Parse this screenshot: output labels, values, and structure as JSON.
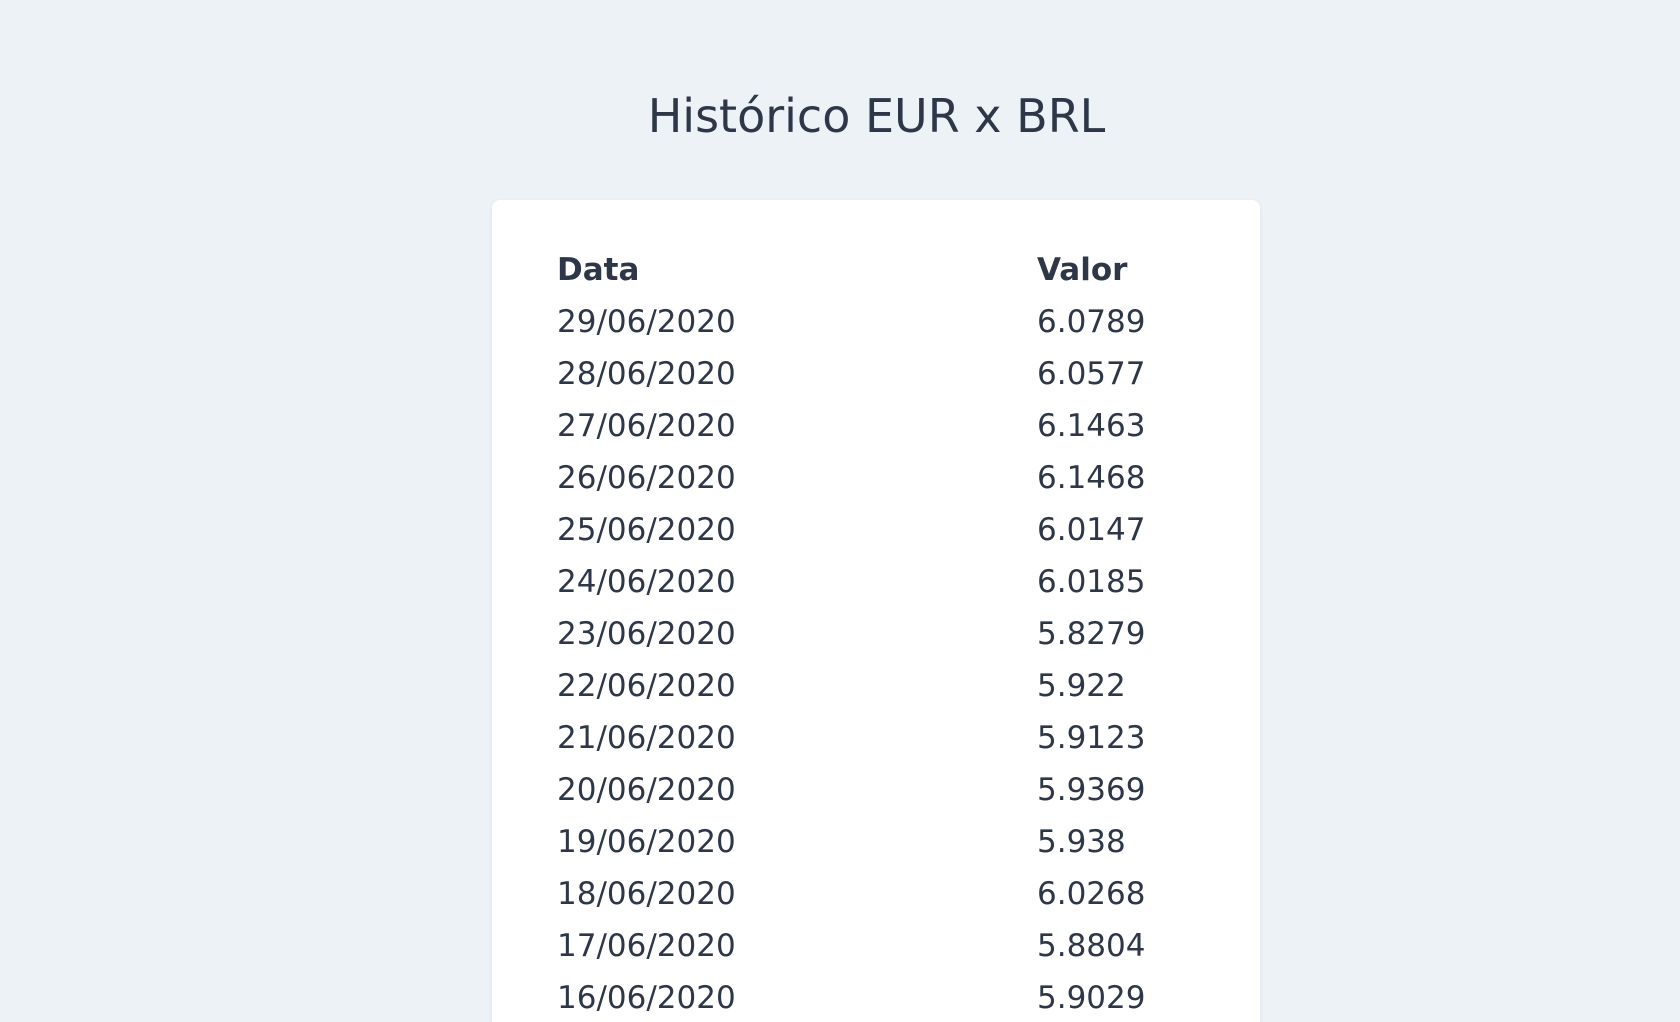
{
  "page": {
    "title": "Histórico EUR x BRL"
  },
  "table": {
    "headers": {
      "date": "Data",
      "value": "Valor"
    },
    "rows": [
      {
        "date": "29/06/2020",
        "value": "6.0789"
      },
      {
        "date": "28/06/2020",
        "value": "6.0577"
      },
      {
        "date": "27/06/2020",
        "value": "6.1463"
      },
      {
        "date": "26/06/2020",
        "value": "6.1468"
      },
      {
        "date": "25/06/2020",
        "value": "6.0147"
      },
      {
        "date": "24/06/2020",
        "value": "6.0185"
      },
      {
        "date": "23/06/2020",
        "value": "5.8279"
      },
      {
        "date": "22/06/2020",
        "value": "5.922"
      },
      {
        "date": "21/06/2020",
        "value": "5.9123"
      },
      {
        "date": "20/06/2020",
        "value": "5.9369"
      },
      {
        "date": "19/06/2020",
        "value": "5.938"
      },
      {
        "date": "18/06/2020",
        "value": "6.0268"
      },
      {
        "date": "17/06/2020",
        "value": "5.8804"
      },
      {
        "date": "16/06/2020",
        "value": "5.9029"
      }
    ]
  }
}
